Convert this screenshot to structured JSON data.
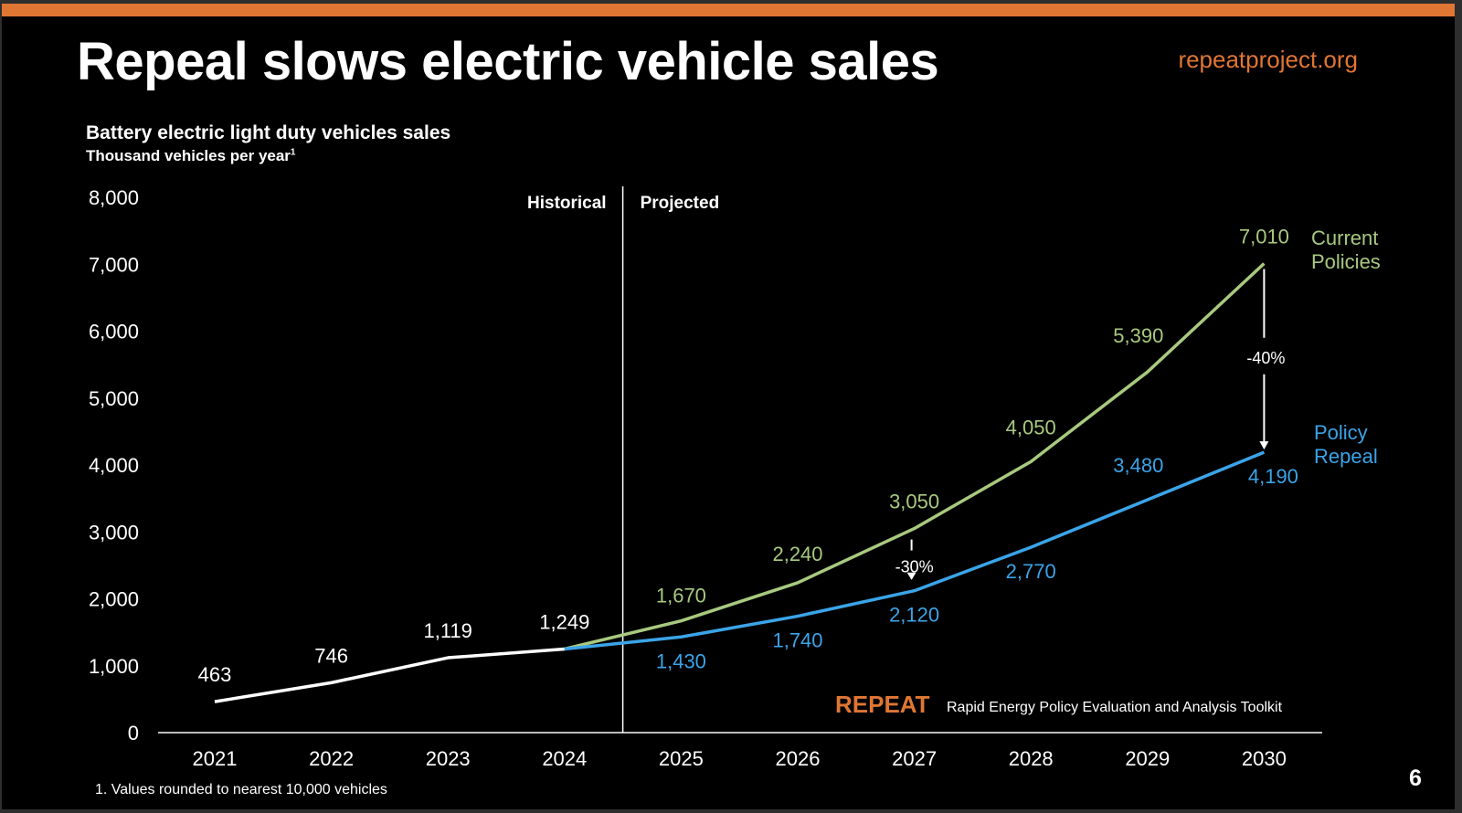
{
  "slide": {
    "title": "Repeal slows electric vehicle sales",
    "site": "repeatproject.org",
    "footnote": "1. Values rounded to nearest 10,000 vehicles",
    "page_number": "6",
    "brand": "REPEAT",
    "brand_subtitle": "Rapid Energy Policy Evaluation and Analysis Toolkit",
    "accent_color": "#e07633"
  },
  "chart_data": {
    "type": "line",
    "title": "Battery electric light duty vehicles sales",
    "ylabel": "Thousand vehicles per year",
    "ylabel_footnote_mark": "1",
    "ylim": [
      0,
      8000
    ],
    "yticks": [
      "0",
      "1,000",
      "2,000",
      "3,000",
      "4,000",
      "5,000",
      "6,000",
      "7,000",
      "8,000"
    ],
    "categories": [
      "2021",
      "2022",
      "2023",
      "2024",
      "2025",
      "2026",
      "2027",
      "2028",
      "2029",
      "2030"
    ],
    "grid": false,
    "divider_labels": {
      "left": "Historical",
      "right": "Projected"
    },
    "series": [
      {
        "name": "",
        "key": "historical",
        "color": "#ffffff",
        "x": [
          "2021",
          "2022",
          "2023",
          "2024"
        ],
        "values": [
          463,
          746,
          1119,
          1249
        ],
        "labels": [
          "463",
          "746",
          "1,119",
          "1,249"
        ]
      },
      {
        "name": "Current Policies",
        "key": "current",
        "color": "#a8c97f",
        "x": [
          "2024",
          "2025",
          "2026",
          "2027",
          "2028",
          "2029",
          "2030"
        ],
        "values": [
          1249,
          1670,
          2240,
          3050,
          4050,
          5390,
          7010
        ],
        "labels": [
          "",
          "1,670",
          "2,240",
          "3,050",
          "4,050",
          "5,390",
          "7,010"
        ]
      },
      {
        "name": "Policy Repeal",
        "key": "repeal",
        "color": "#3ba4e8",
        "x": [
          "2024",
          "2025",
          "2026",
          "2027",
          "2028",
          "2029",
          "2030"
        ],
        "values": [
          1249,
          1430,
          1740,
          2120,
          2770,
          3480,
          4190
        ],
        "labels": [
          "",
          "1,430",
          "1,740",
          "2,120",
          "2,770",
          "3,480",
          "4,190"
        ]
      }
    ],
    "annotations": [
      {
        "x": "2027",
        "text": "-30%"
      },
      {
        "x": "2030",
        "text": "-40%"
      }
    ]
  }
}
